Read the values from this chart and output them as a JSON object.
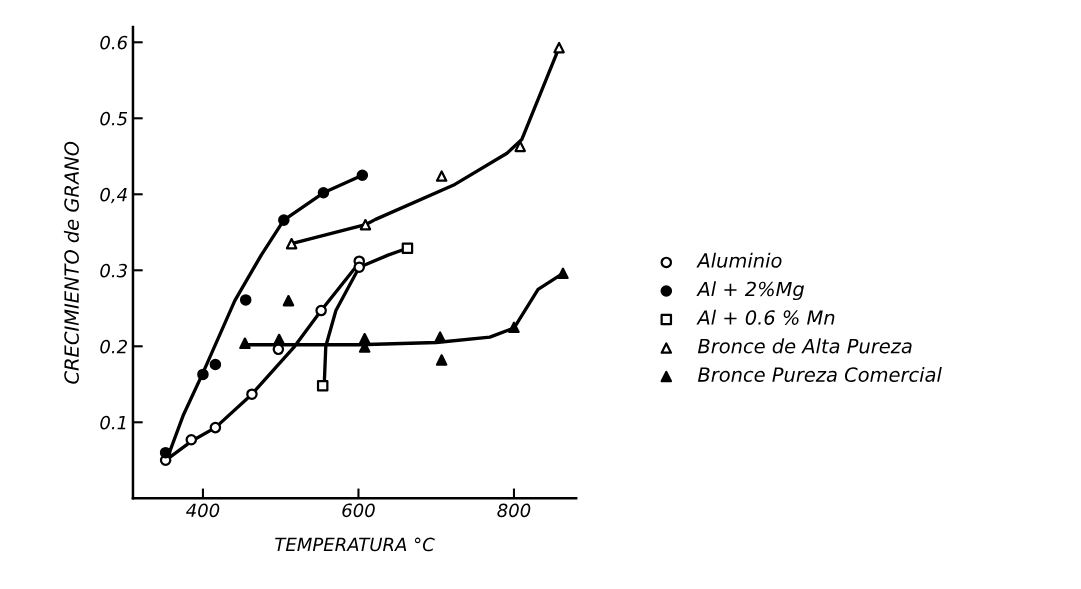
{
  "chart_data": {
    "type": "scatter",
    "xlabel": "TEMPERATURA °C",
    "ylabel": "CRECIMIENTO de GRANO",
    "xlim": [
      310,
      880
    ],
    "ylim": [
      0,
      0.62
    ],
    "xticks": [
      400,
      600,
      800
    ],
    "yticks": [
      {
        "value": 0.1,
        "label": "0.1"
      },
      {
        "value": 0.2,
        "label": "0.2"
      },
      {
        "value": 0.3,
        "label": "0.3"
      },
      {
        "value": 0.4,
        "label": "0,4"
      },
      {
        "value": 0.5,
        "label": "0.5"
      },
      {
        "value": 0.6,
        "label": "0.6"
      }
    ],
    "grid": false,
    "legend": "right",
    "series": [
      {
        "name": "Aluminio",
        "marker": "circle",
        "color": "#ffffff",
        "x": [
          352,
          385,
          416,
          463,
          497,
          552,
          601,
          601
        ],
        "values": [
          0.05,
          0.077,
          0.093,
          0.137,
          0.196,
          0.247,
          0.312,
          0.304
        ]
      },
      {
        "name": "Al + 2%Mg",
        "marker": "circle",
        "color": "#000000",
        "x": [
          352,
          400,
          416,
          455,
          504,
          555,
          605
        ],
        "values": [
          0.06,
          0.163,
          0.176,
          0.261,
          0.366,
          0.402,
          0.425
        ]
      },
      {
        "name": "Al + 0.6 % Mn",
        "marker": "square",
        "color": "#ffffff",
        "x": [
          554,
          663
        ],
        "values": [
          0.148,
          0.329
        ]
      },
      {
        "name": "Bronce de Alta Pureza",
        "marker": "triangle",
        "color": "#ffffff",
        "x": [
          514,
          609,
          707,
          808,
          858
        ],
        "values": [
          0.335,
          0.36,
          0.424,
          0.463,
          0.593
        ]
      },
      {
        "name": "Bronce Pureza Comercial",
        "marker": "triangle",
        "color": "#000000",
        "x": [
          454,
          498,
          510,
          608,
          608,
          705,
          707,
          800,
          863
        ],
        "values": [
          0.204,
          0.209,
          0.26,
          0.21,
          0.199,
          0.212,
          0.182,
          0.225,
          0.296
        ]
      },
      {
        "type": "line",
        "color": "#000000",
        "line_style": "solid",
        "x": [
          352,
          385,
          416,
          463,
          518,
          552,
          601
        ],
        "values": [
          0.05,
          0.075,
          0.093,
          0.137,
          0.2,
          0.247,
          0.31
        ]
      },
      {
        "type": "line",
        "color": "#000000",
        "line_style": "solid",
        "x": [
          355,
          375,
          400,
          441,
          475,
          504,
          555,
          605
        ],
        "values": [
          0.055,
          0.11,
          0.165,
          0.26,
          0.32,
          0.366,
          0.402,
          0.425
        ]
      },
      {
        "type": "line",
        "color": "#000000",
        "line_style": "solid",
        "x": [
          556,
          558,
          571,
          601,
          638,
          663
        ],
        "values": [
          0.15,
          0.2,
          0.247,
          0.304,
          0.32,
          0.329
        ]
      },
      {
        "type": "line",
        "color": "#000000",
        "line_style": "solid",
        "x": [
          514,
          609,
          622,
          724,
          791,
          810,
          831,
          858
        ],
        "values": [
          0.335,
          0.36,
          0.367,
          0.413,
          0.454,
          0.472,
          0.525,
          0.593
        ]
      },
      {
        "type": "line",
        "color": "#000000",
        "line_style": "solid",
        "x": [
          454,
          600,
          700,
          769,
          800,
          831,
          863
        ],
        "values": [
          0.202,
          0.202,
          0.205,
          0.212,
          0.224,
          0.275,
          0.296
        ]
      }
    ]
  }
}
